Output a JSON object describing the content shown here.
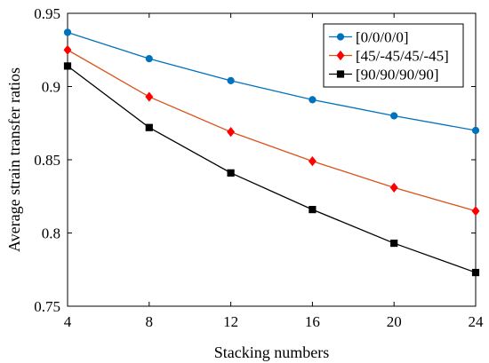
{
  "chart_data": {
    "type": "line",
    "title": "",
    "xlabel": "Stacking numbers",
    "ylabel": "Average strain transfer ratios",
    "x": [
      4,
      8,
      12,
      16,
      20,
      24
    ],
    "xlim": [
      4,
      24
    ],
    "ylim": [
      0.75,
      0.95
    ],
    "xticks": [
      "4",
      "8",
      "12",
      "16",
      "20",
      "24"
    ],
    "yticks": [
      "0.75",
      "0.8",
      "0.85",
      "0.9",
      "0.95"
    ],
    "grid": false,
    "legend_position": "top-right",
    "series": [
      {
        "name": "[0/0/0/0]",
        "color": "#0072BD",
        "marker": "circle",
        "values": [
          0.937,
          0.919,
          0.904,
          0.891,
          0.88,
          0.87
        ]
      },
      {
        "name": "[45/-45/45/-45]",
        "color": "#D95319",
        "marker": "diamond",
        "marker_color": "#FF0000",
        "values": [
          0.925,
          0.893,
          0.869,
          0.849,
          0.831,
          0.815
        ]
      },
      {
        "name": "[90/90/90/90]",
        "color": "#000000",
        "marker": "square",
        "values": [
          0.914,
          0.872,
          0.841,
          0.816,
          0.793,
          0.773
        ]
      }
    ]
  }
}
